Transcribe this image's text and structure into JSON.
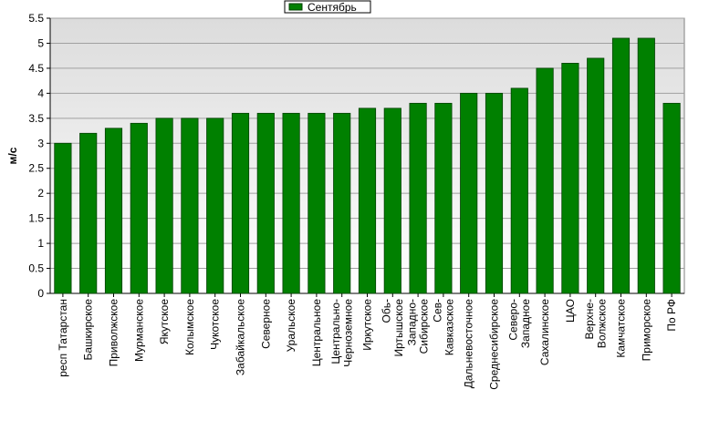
{
  "chart_data": {
    "type": "bar",
    "y_label": "м/с",
    "series": [
      {
        "name": "Сентябрь",
        "color": "#008000",
        "values": [
          3.0,
          3.2,
          3.3,
          3.4,
          3.5,
          3.5,
          3.5,
          3.6,
          3.6,
          3.6,
          3.6,
          3.6,
          3.7,
          3.7,
          3.8,
          3.8,
          4.0,
          4.0,
          4.1,
          4.5,
          4.6,
          4.7,
          5.1,
          5.1,
          3.8
        ]
      }
    ],
    "categories": [
      "респ Татарстан",
      "Башкирское",
      "Приволжское",
      "Мурманское",
      "Якутское",
      "Колымское",
      "Чукотское",
      "Забайкальское",
      "Северное",
      "Уральское",
      "Центральное",
      "Центрально-\nЧерноземное",
      "Иркутское",
      "Обь-\nИртышское",
      "Западно-\nСибирское",
      "Сев-\nКавказское",
      "Дальневосточное",
      "Среднесибирское",
      "Северо-\nЗападное",
      "Сахалинское",
      "ЦАО",
      "Верхне-\nВолжское",
      "Камчатское",
      "Приморское",
      "По РФ"
    ],
    "ylim": [
      0,
      5.5
    ],
    "yticks": [
      0,
      0.5,
      1,
      1.5,
      2,
      2.5,
      3,
      3.5,
      4,
      4.5,
      5,
      5.5
    ],
    "grid": true,
    "legend": "top"
  }
}
